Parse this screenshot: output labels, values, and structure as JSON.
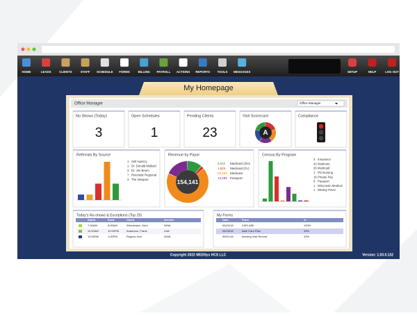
{
  "toolbar": {
    "left": [
      "HOME",
      "LEADS",
      "CLIENTS",
      "STAFF",
      "SCHEDULE",
      "FORMS",
      "BILLING",
      "PAYROLL",
      "ACTIONS",
      "REPORTS",
      "TOOLS",
      "MESSAGES"
    ],
    "right": [
      "SETUP",
      "HELP",
      "LOG OUT"
    ]
  },
  "page": {
    "title": "My Homepage",
    "header": "Office Manager",
    "dropdown": "Office Manager",
    "copyright": "Copyright 2022 MEDSys HCS LLC",
    "version": "Version: 1.03.0.132"
  },
  "cards": [
    {
      "title": "No Shows (Today)",
      "value": "3"
    },
    {
      "title": "Open Schedules",
      "value": "1"
    },
    {
      "title": "Pending Clients",
      "value": "23"
    },
    {
      "title": "Visit Scorecard",
      "grade": "A"
    },
    {
      "title": "Compliance"
    }
  ],
  "referrals": {
    "title": "Referrals By Source",
    "items": [
      {
        "count": 1,
        "name": "Self Agency",
        "color": "#2b4fa0"
      },
      {
        "count": 1,
        "name": "Dr. Donald Mallard",
        "color": "#f0a020"
      },
      {
        "count": 3,
        "name": "Dr. Jim Beam",
        "color": "#d9302c"
      },
      {
        "count": 7,
        "name": "Riverside Regional",
        "color": "#f08a1c"
      },
      {
        "count": 3,
        "name": "The Newport",
        "color": "#2e9a3e"
      }
    ]
  },
  "revenue": {
    "title": "Revenue by Payor",
    "total": "154,141",
    "items": [
      {
        "amount": 8602,
        "label": "8,602",
        "name": "Medicaid (OH)",
        "color": "#2e9a3e"
      },
      {
        "amount": 1825,
        "label": "1,825",
        "name": "Medicaid (FL)",
        "color": "#d9302c"
      },
      {
        "amount": 50658,
        "label": "50,658",
        "name": "Medicare",
        "color": "#f08a1c"
      },
      {
        "amount": 13589,
        "label": "13,589",
        "name": "Passport",
        "color": "#7b2d8e"
      }
    ]
  },
  "census": {
    "title": "Census By Program",
    "items": [
      {
        "count": 3,
        "name": "Insurance",
        "color": "#2e9a3e"
      },
      {
        "count": 42,
        "name": "Medicare",
        "color": "#2e9a3e"
      },
      {
        "count": 26,
        "name": "Medicaid",
        "color": "#d9302c"
      },
      {
        "count": 1,
        "name": "PD Nursing",
        "color": "#f08a1c"
      },
      {
        "count": 15,
        "name": "Private Pay",
        "color": "#7b2d8e"
      },
      {
        "count": 8,
        "name": "Passport",
        "color": "#2e9a3e"
      },
      {
        "count": 1,
        "name": "Wisconsin Medical",
        "color": "#2b4fa0"
      },
      {
        "count": 1,
        "name": "Wesley Pines",
        "color": "#d9302c"
      }
    ]
  },
  "no_shows": {
    "title": "Today's No-shows & Exceptions (Top 25)",
    "columns": [
      "Starts",
      "Ends",
      "Client",
      "Service"
    ],
    "rows": [
      {
        "color": "#b5d334",
        "cells": [
          "7:00AM",
          "8:00AM",
          "Winchester, John",
          "WHA"
        ]
      },
      {
        "color": "#7cc242",
        "cells": [
          "11:00AM",
          "12:00PM",
          "Anderson, Frank",
          "LNA"
        ]
      },
      {
        "color": "#1f3a8a",
        "cells": [
          "12:00PM",
          "1:00PM",
          "Rogers, Ann",
          "WHA"
        ]
      }
    ]
  },
  "forms": {
    "title": "My Forms",
    "columns": [
      "Date",
      "Form",
      "%"
    ],
    "rows": [
      [
        "05/22/18",
        "CMS-485",
        "100%"
      ],
      [
        "05/18/18",
        "Aide Care Plan",
        "33%"
      ],
      [
        "05/01/18",
        "Nursing Visit Record",
        "33%"
      ]
    ]
  }
}
